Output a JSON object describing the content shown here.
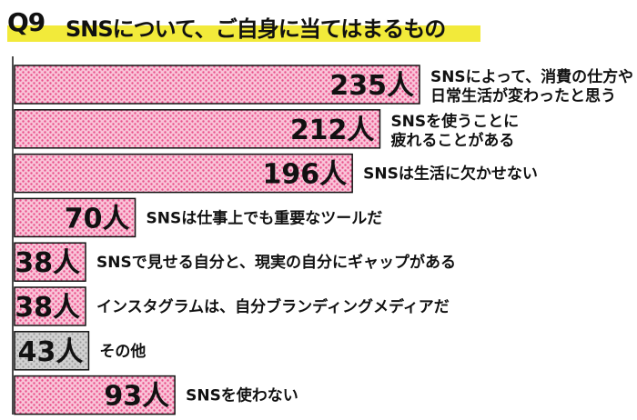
{
  "title": {
    "q_label": "Q9",
    "text": "SNSについて、ご自身に当てはまるもの"
  },
  "colors": {
    "bar_fill": "#f9c4d8",
    "bar_dots": "#e9508a",
    "other_fill": "#c8c8c8",
    "other_dots": "#9a9a9a",
    "highlight": "#f2ea3a"
  },
  "chart_data": {
    "type": "bar",
    "orientation": "horizontal",
    "unit": "人",
    "categories": [
      [
        "SNSによって、消費の仕方や",
        "日常生活が変わったと思う"
      ],
      [
        "SNSを使うことに",
        "疲れることがある"
      ],
      [
        "SNSは生活に欠かせない"
      ],
      [
        "SNSは仕事上でも重要なツールだ"
      ],
      [
        "SNSで見せる自分と、現実の自分にギャップがある"
      ],
      [
        "インスタグラムは、自分ブランディングメディアだ"
      ],
      [
        "その他"
      ],
      [
        "SNSを使わない"
      ]
    ],
    "values": [
      235,
      212,
      196,
      70,
      38,
      38,
      43,
      93
    ],
    "value_labels": [
      "235人",
      "212人",
      "196人",
      "70人",
      "38人",
      "38人",
      "43人",
      "93人"
    ],
    "highlight_gray": [
      false,
      false,
      false,
      false,
      false,
      false,
      true,
      false
    ]
  }
}
